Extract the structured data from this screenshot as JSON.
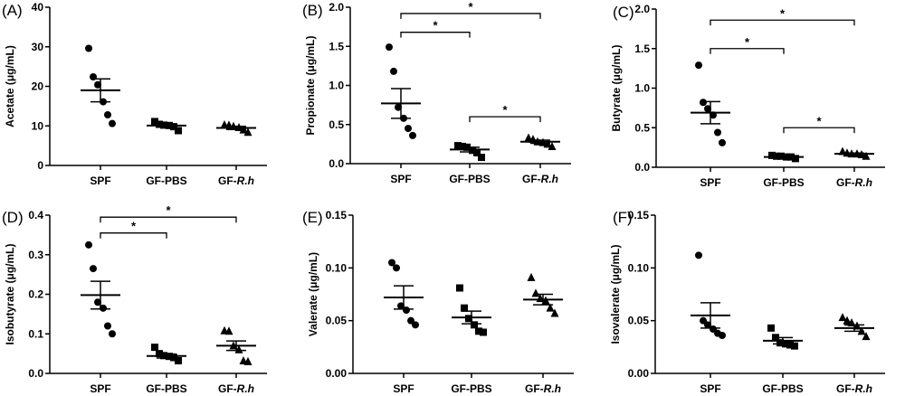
{
  "chart_data": [
    {
      "type": "scatter",
      "panel": "(A)",
      "ylabel": "Acetate (μg/mL)",
      "ylim": [
        0,
        40
      ],
      "yticks": [
        "0",
        "10",
        "20",
        "30",
        "40"
      ],
      "categories": [
        "SPF",
        "GF-PBS",
        "GF-R.h"
      ],
      "series": [
        {
          "values": [
            29.6,
            22.4,
            20.4,
            16.1,
            12.8,
            10.6
          ],
          "mean": 19.0,
          "sem": 2.9
        },
        {
          "values": [
            11.1,
            10.4,
            10.2,
            10.1,
            9.8,
            8.8
          ],
          "mean": 10.1,
          "sem": 0.4
        },
        {
          "values": [
            10.3,
            10.2,
            9.9,
            9.6,
            9.0,
            8.4
          ],
          "mean": 9.5,
          "sem": 0.4
        }
      ],
      "significance": []
    },
    {
      "type": "scatter",
      "panel": "(B)",
      "ylabel": "Propionate (μg/mL)",
      "ylim": [
        0,
        2.0
      ],
      "yticks": [
        "0.0",
        "0.5",
        "1.0",
        "1.5",
        "2.0"
      ],
      "categories": [
        "SPF",
        "GF-PBS",
        "GF-R.h"
      ],
      "series": [
        {
          "values": [
            1.49,
            1.18,
            0.72,
            0.58,
            0.45,
            0.36
          ],
          "mean": 0.77,
          "sem": 0.19
        },
        {
          "values": [
            0.23,
            0.22,
            0.21,
            0.17,
            0.14,
            0.08
          ],
          "mean": 0.18,
          "sem": 0.03
        },
        {
          "values": [
            0.33,
            0.31,
            0.28,
            0.27,
            0.25,
            0.22
          ],
          "mean": 0.28,
          "sem": 0.02
        }
      ],
      "significance": [
        {
          "from": 0,
          "to": 1,
          "label": "*",
          "y": 1.68
        },
        {
          "from": 0,
          "to": 2,
          "label": "*",
          "y": 1.92
        },
        {
          "from": 1,
          "to": 2,
          "label": "*",
          "y": 0.6
        }
      ]
    },
    {
      "type": "scatter",
      "panel": "(C)",
      "ylabel": "Butyrate (μg/mL)",
      "ylim": [
        0,
        2.0
      ],
      "yticks": [
        "0.0",
        "0.5",
        "1.0",
        "1.5",
        "2.0"
      ],
      "categories": [
        "SPF",
        "GF-PBS",
        "GF-R.h"
      ],
      "series": [
        {
          "values": [
            1.29,
            0.82,
            0.74,
            0.66,
            0.44,
            0.31
          ],
          "mean": 0.69,
          "sem": 0.14
        },
        {
          "values": [
            0.15,
            0.14,
            0.14,
            0.13,
            0.13,
            0.11
          ],
          "mean": 0.13,
          "sem": 0.01
        },
        {
          "values": [
            0.2,
            0.18,
            0.17,
            0.17,
            0.16,
            0.14
          ],
          "mean": 0.17,
          "sem": 0.01
        }
      ],
      "significance": [
        {
          "from": 0,
          "to": 1,
          "label": "*",
          "y": 1.5
        },
        {
          "from": 0,
          "to": 2,
          "label": "*",
          "y": 1.86
        },
        {
          "from": 1,
          "to": 2,
          "label": "*",
          "y": 0.5
        }
      ]
    },
    {
      "type": "scatter",
      "panel": "(D)",
      "ylabel": "Isobutyrate (μg/mL)",
      "ylim": [
        0,
        0.4
      ],
      "yticks": [
        "0.0",
        "0.1",
        "0.2",
        "0.3",
        "0.4"
      ],
      "categories": [
        "SPF",
        "GF-PBS",
        "GF-R.h"
      ],
      "series": [
        {
          "values": [
            0.325,
            0.265,
            0.18,
            0.165,
            0.12,
            0.1
          ],
          "mean": 0.198,
          "sem": 0.035
        },
        {
          "values": [
            0.066,
            0.05,
            0.045,
            0.043,
            0.04,
            0.032
          ],
          "mean": 0.044,
          "sem": 0.005
        },
        {
          "values": [
            0.108,
            0.107,
            0.07,
            0.06,
            0.032,
            0.03
          ],
          "mean": 0.07,
          "sem": 0.012
        }
      ],
      "significance": [
        {
          "from": 0,
          "to": 1,
          "label": "*",
          "y": 0.355
        },
        {
          "from": 0,
          "to": 2,
          "label": "*",
          "y": 0.395
        }
      ]
    },
    {
      "type": "scatter",
      "panel": "(E)",
      "ylabel": "Valerate (μg/mL)",
      "ylim": [
        0,
        0.15
      ],
      "yticks": [
        "0.00",
        "0.05",
        "0.10",
        "0.15"
      ],
      "categories": [
        "SPF",
        "GF-PBS",
        "GF-R.h"
      ],
      "series": [
        {
          "values": [
            0.105,
            0.1,
            0.064,
            0.06,
            0.05,
            0.046
          ],
          "mean": 0.072,
          "sem": 0.011
        },
        {
          "values": [
            0.081,
            0.062,
            0.052,
            0.046,
            0.04,
            0.039
          ],
          "mean": 0.053,
          "sem": 0.006
        },
        {
          "values": [
            0.091,
            0.076,
            0.071,
            0.069,
            0.062,
            0.057
          ],
          "mean": 0.07,
          "sem": 0.005
        }
      ],
      "significance": []
    },
    {
      "type": "scatter",
      "panel": "(F)",
      "ylabel": "Isovalerate (μg/mL)",
      "ylim": [
        0,
        0.15
      ],
      "yticks": [
        "0.00",
        "0.05",
        "0.10",
        "0.15"
      ],
      "categories": [
        "SPF",
        "GF-PBS",
        "GF-R.h"
      ],
      "series": [
        {
          "values": [
            0.112,
            0.05,
            0.046,
            0.042,
            0.038,
            0.036
          ],
          "mean": 0.055,
          "sem": 0.012
        },
        {
          "values": [
            0.043,
            0.034,
            0.029,
            0.028,
            0.027,
            0.026
          ],
          "mean": 0.031,
          "sem": 0.003
        },
        {
          "values": [
            0.053,
            0.05,
            0.048,
            0.045,
            0.04,
            0.035
          ],
          "mean": 0.043,
          "sem": 0.003
        }
      ],
      "significance": []
    }
  ]
}
